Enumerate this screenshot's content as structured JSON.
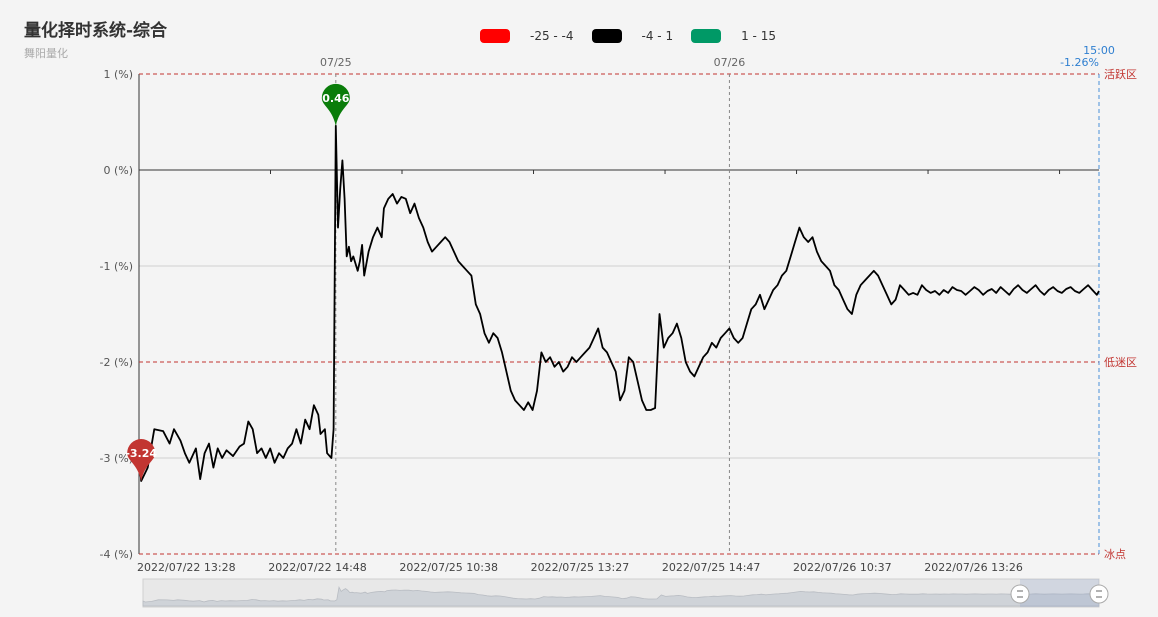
{
  "title": "量化择时系统-综合",
  "subtitle": "舞阳量化",
  "legend": [
    {
      "label": "-25 - -4",
      "color": "#ff0000"
    },
    {
      "label": "-4 - 1",
      "color": "#000000"
    },
    {
      "label": "1 - 15",
      "color": "#009966"
    }
  ],
  "chart_data": {
    "type": "line",
    "ylim": [
      -4,
      1
    ],
    "yticks": [
      "1 (%)",
      "0 (%)",
      "-1 (%)",
      "-2 (%)",
      "-3 (%)",
      "-4 (%)"
    ],
    "ytick_values": [
      1,
      0,
      -1,
      -2,
      -3,
      -4
    ],
    "xlabels": [
      "2022/07/22 13:28",
      "2022/07/22 14:48",
      "2022/07/25 10:38",
      "2022/07/25 13:27",
      "2022/07/25 14:47",
      "2022/07/26 10:37",
      "2022/07/26 13:26"
    ],
    "xlabel_index": [
      0,
      60,
      120,
      180,
      240,
      300,
      360
    ],
    "n_points": 440,
    "day_markers": [
      {
        "index": 90,
        "label": "07/25"
      },
      {
        "index": 270,
        "label": "07/26"
      }
    ],
    "current_marker": {
      "index": 439,
      "time": "15:00",
      "value_label": "-1.26%"
    },
    "ref_lines": [
      {
        "value": 1,
        "label": "活跃区",
        "color": "#c23531"
      },
      {
        "value": -2,
        "label": "低迷区",
        "color": "#c23531"
      },
      {
        "value": -4,
        "label": "冰点",
        "color": "#c23531"
      }
    ],
    "pins": [
      {
        "label": "-3.24",
        "index": 1,
        "value": -3.24,
        "color": "#c23531"
      },
      {
        "label": "0.46",
        "index": 90,
        "value": 0.46,
        "color": "#0a7d0a"
      }
    ],
    "series": [
      {
        "color": "#000000",
        "points": [
          [
            0,
            -3.0
          ],
          [
            1,
            -3.24
          ],
          [
            4,
            -3.1
          ],
          [
            7,
            -2.7
          ],
          [
            11,
            -2.72
          ],
          [
            14,
            -2.85
          ],
          [
            16,
            -2.7
          ],
          [
            19,
            -2.82
          ],
          [
            21,
            -2.95
          ],
          [
            23,
            -3.05
          ],
          [
            26,
            -2.9
          ],
          [
            28,
            -3.22
          ],
          [
            30,
            -2.95
          ],
          [
            32,
            -2.85
          ],
          [
            34,
            -3.1
          ],
          [
            36,
            -2.9
          ],
          [
            38,
            -3.0
          ],
          [
            40,
            -2.92
          ],
          [
            43,
            -2.98
          ],
          [
            46,
            -2.88
          ],
          [
            48,
            -2.85
          ],
          [
            50,
            -2.62
          ],
          [
            52,
            -2.7
          ],
          [
            54,
            -2.95
          ],
          [
            56,
            -2.9
          ],
          [
            58,
            -3.0
          ],
          [
            60,
            -2.9
          ],
          [
            62,
            -3.05
          ],
          [
            64,
            -2.95
          ],
          [
            66,
            -3.0
          ],
          [
            68,
            -2.9
          ],
          [
            70,
            -2.85
          ],
          [
            72,
            -2.7
          ],
          [
            74,
            -2.85
          ],
          [
            76,
            -2.6
          ],
          [
            78,
            -2.7
          ],
          [
            80,
            -2.45
          ],
          [
            82,
            -2.55
          ],
          [
            83,
            -2.75
          ],
          [
            85,
            -2.7
          ],
          [
            86,
            -2.95
          ],
          [
            88,
            -3.0
          ],
          [
            89,
            -2.7
          ],
          [
            90,
            0.46
          ],
          [
            91,
            -0.6
          ],
          [
            92,
            -0.2
          ],
          [
            93,
            0.1
          ],
          [
            94,
            -0.3
          ],
          [
            95,
            -0.9
          ],
          [
            96,
            -0.8
          ],
          [
            97,
            -0.95
          ],
          [
            98,
            -0.9
          ],
          [
            100,
            -1.05
          ],
          [
            101,
            -0.95
          ],
          [
            102,
            -0.78
          ],
          [
            103,
            -1.1
          ],
          [
            105,
            -0.85
          ],
          [
            107,
            -0.7
          ],
          [
            109,
            -0.6
          ],
          [
            111,
            -0.7
          ],
          [
            112,
            -0.4
          ],
          [
            114,
            -0.3
          ],
          [
            116,
            -0.25
          ],
          [
            118,
            -0.35
          ],
          [
            120,
            -0.28
          ],
          [
            122,
            -0.3
          ],
          [
            124,
            -0.45
          ],
          [
            126,
            -0.35
          ],
          [
            128,
            -0.5
          ],
          [
            130,
            -0.6
          ],
          [
            132,
            -0.75
          ],
          [
            134,
            -0.85
          ],
          [
            136,
            -0.8
          ],
          [
            138,
            -0.75
          ],
          [
            140,
            -0.7
          ],
          [
            142,
            -0.75
          ],
          [
            144,
            -0.85
          ],
          [
            146,
            -0.95
          ],
          [
            148,
            -1.0
          ],
          [
            150,
            -1.05
          ],
          [
            152,
            -1.1
          ],
          [
            154,
            -1.4
          ],
          [
            156,
            -1.5
          ],
          [
            158,
            -1.7
          ],
          [
            160,
            -1.8
          ],
          [
            162,
            -1.7
          ],
          [
            164,
            -1.75
          ],
          [
            166,
            -1.9
          ],
          [
            168,
            -2.1
          ],
          [
            170,
            -2.3
          ],
          [
            172,
            -2.4
          ],
          [
            174,
            -2.45
          ],
          [
            176,
            -2.5
          ],
          [
            178,
            -2.42
          ],
          [
            180,
            -2.5
          ],
          [
            182,
            -2.3
          ],
          [
            184,
            -1.9
          ],
          [
            186,
            -2.0
          ],
          [
            188,
            -1.95
          ],
          [
            190,
            -2.05
          ],
          [
            192,
            -2.0
          ],
          [
            194,
            -2.1
          ],
          [
            196,
            -2.05
          ],
          [
            198,
            -1.95
          ],
          [
            200,
            -2.0
          ],
          [
            202,
            -1.95
          ],
          [
            204,
            -1.9
          ],
          [
            206,
            -1.85
          ],
          [
            208,
            -1.75
          ],
          [
            210,
            -1.65
          ],
          [
            212,
            -1.85
          ],
          [
            214,
            -1.9
          ],
          [
            216,
            -2.0
          ],
          [
            218,
            -2.1
          ],
          [
            220,
            -2.4
          ],
          [
            222,
            -2.3
          ],
          [
            224,
            -1.95
          ],
          [
            226,
            -2.0
          ],
          [
            228,
            -2.2
          ],
          [
            230,
            -2.4
          ],
          [
            232,
            -2.5
          ],
          [
            234,
            -2.5
          ],
          [
            236,
            -2.48
          ],
          [
            238,
            -1.5
          ],
          [
            240,
            -1.85
          ],
          [
            242,
            -1.75
          ],
          [
            244,
            -1.7
          ],
          [
            246,
            -1.6
          ],
          [
            248,
            -1.75
          ],
          [
            250,
            -2.0
          ],
          [
            252,
            -2.1
          ],
          [
            254,
            -2.15
          ],
          [
            256,
            -2.05
          ],
          [
            258,
            -1.95
          ],
          [
            260,
            -1.9
          ],
          [
            262,
            -1.8
          ],
          [
            264,
            -1.85
          ],
          [
            266,
            -1.75
          ],
          [
            268,
            -1.7
          ],
          [
            270,
            -1.65
          ],
          [
            272,
            -1.75
          ],
          [
            274,
            -1.8
          ],
          [
            276,
            -1.75
          ],
          [
            278,
            -1.6
          ],
          [
            280,
            -1.45
          ],
          [
            282,
            -1.4
          ],
          [
            284,
            -1.3
          ],
          [
            286,
            -1.45
          ],
          [
            288,
            -1.35
          ],
          [
            290,
            -1.25
          ],
          [
            292,
            -1.2
          ],
          [
            294,
            -1.1
          ],
          [
            296,
            -1.05
          ],
          [
            298,
            -0.9
          ],
          [
            300,
            -0.75
          ],
          [
            302,
            -0.6
          ],
          [
            304,
            -0.7
          ],
          [
            306,
            -0.75
          ],
          [
            308,
            -0.7
          ],
          [
            310,
            -0.85
          ],
          [
            312,
            -0.95
          ],
          [
            314,
            -1.0
          ],
          [
            316,
            -1.05
          ],
          [
            318,
            -1.2
          ],
          [
            320,
            -1.25
          ],
          [
            322,
            -1.35
          ],
          [
            324,
            -1.45
          ],
          [
            326,
            -1.5
          ],
          [
            328,
            -1.3
          ],
          [
            330,
            -1.2
          ],
          [
            332,
            -1.15
          ],
          [
            334,
            -1.1
          ],
          [
            336,
            -1.05
          ],
          [
            338,
            -1.1
          ],
          [
            340,
            -1.2
          ],
          [
            342,
            -1.3
          ],
          [
            344,
            -1.4
          ],
          [
            346,
            -1.35
          ],
          [
            348,
            -1.2
          ],
          [
            350,
            -1.25
          ],
          [
            352,
            -1.3
          ],
          [
            354,
            -1.28
          ],
          [
            356,
            -1.3
          ],
          [
            358,
            -1.2
          ],
          [
            360,
            -1.25
          ],
          [
            362,
            -1.28
          ],
          [
            364,
            -1.26
          ],
          [
            366,
            -1.3
          ],
          [
            368,
            -1.25
          ],
          [
            370,
            -1.28
          ],
          [
            372,
            -1.22
          ],
          [
            374,
            -1.25
          ],
          [
            376,
            -1.26
          ],
          [
            378,
            -1.3
          ],
          [
            380,
            -1.26
          ],
          [
            382,
            -1.22
          ],
          [
            384,
            -1.25
          ],
          [
            386,
            -1.3
          ],
          [
            388,
            -1.26
          ],
          [
            390,
            -1.24
          ],
          [
            392,
            -1.28
          ],
          [
            394,
            -1.22
          ],
          [
            396,
            -1.26
          ],
          [
            398,
            -1.3
          ],
          [
            400,
            -1.24
          ],
          [
            402,
            -1.2
          ],
          [
            404,
            -1.25
          ],
          [
            406,
            -1.28
          ],
          [
            408,
            -1.24
          ],
          [
            410,
            -1.2
          ],
          [
            412,
            -1.26
          ],
          [
            414,
            -1.3
          ],
          [
            416,
            -1.25
          ],
          [
            418,
            -1.22
          ],
          [
            420,
            -1.26
          ],
          [
            422,
            -1.28
          ],
          [
            424,
            -1.24
          ],
          [
            426,
            -1.22
          ],
          [
            428,
            -1.26
          ],
          [
            430,
            -1.28
          ],
          [
            432,
            -1.24
          ],
          [
            434,
            -1.2
          ],
          [
            436,
            -1.25
          ],
          [
            438,
            -1.3
          ],
          [
            439,
            -1.26
          ]
        ]
      }
    ],
    "grid": true
  }
}
